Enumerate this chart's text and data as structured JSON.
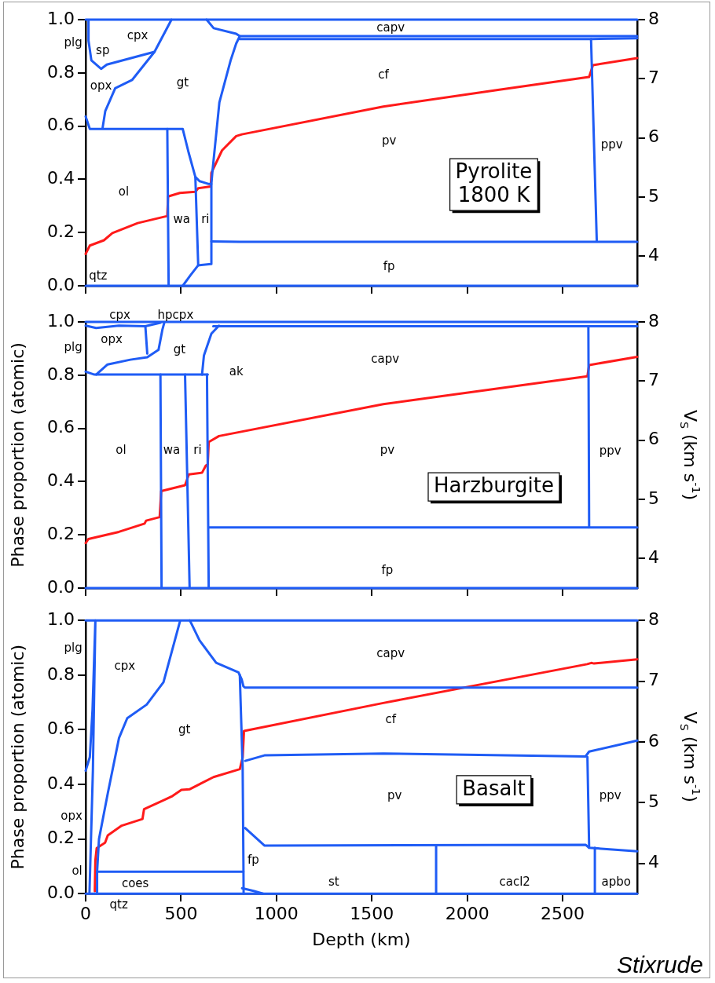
{
  "chart_data": [
    {
      "type": "line",
      "title": "Pyrolite\n1800 K",
      "xlim": [
        0,
        2891
      ],
      "xticks": [
        0,
        500,
        1000,
        1500,
        2000,
        2500
      ],
      "ylim": [
        0,
        1
      ],
      "yticks": [
        {
          "value": 0,
          "label": "0.0"
        },
        {
          "value": 0.2,
          "label": "0.2"
        },
        {
          "value": 0.4,
          "label": "0.4"
        },
        {
          "value": 0.6,
          "label": "0.6"
        },
        {
          "value": 0.8,
          "label": "0.8"
        },
        {
          "value": 1,
          "label": "1.0"
        }
      ],
      "y2lim": [
        3.5,
        8
      ],
      "y2ticks": [
        4,
        5,
        6,
        7,
        8
      ],
      "tick_labels": "y",
      "series": [
        {
          "color": "#1f5cf5",
          "x": [
            0,
            2891
          ],
          "values": [
            1,
            1
          ]
        },
        {
          "color": "#1f5cf5",
          "x": [
            0,
            2891
          ],
          "values": [
            0,
            0
          ]
        },
        {
          "color": "#1f5cf5",
          "x": [
            634,
            671,
            789,
            808,
            2891
          ],
          "values": [
            1.0,
            0.968,
            0.947,
            0.938,
            0.938
          ]
        },
        {
          "color": "#1f5cf5",
          "x": [
            808,
            2649,
            2891
          ],
          "values": [
            0.927,
            0.927,
            0.93
          ]
        },
        {
          "color": "#1f5cf5",
          "x": [
            2649,
            2679
          ],
          "values": [
            0.927,
            0.168
          ]
        },
        {
          "color": "#1f5cf5",
          "x": [
            659,
            808,
            2891
          ],
          "values": [
            0.167,
            0.165,
            0.165
          ]
        },
        {
          "color": "#1f5cf5",
          "x": [
            509,
            550,
            590,
            656,
            659,
            659,
            664,
            701,
            760,
            789,
            808
          ],
          "values": [
            0,
            0.04,
            0.077,
            0.082,
            0.082,
            0.383,
            0.425,
            0.689,
            0.847,
            0.91,
            0.938
          ]
        },
        {
          "color": "#1f5cf5",
          "x": [
            0,
            15,
            22,
            428,
            509,
            540,
            575,
            597,
            642,
            659
          ],
          "values": [
            0.636,
            0.604,
            0.589,
            0.589,
            0.589,
            0.5,
            0.409,
            0.393,
            0.383,
            0.383
          ]
        },
        {
          "color": "#1f5cf5",
          "x": [
            428,
            435
          ],
          "values": [
            0.589,
            0
          ]
        },
        {
          "color": "#1f5cf5",
          "x": [
            575,
            590
          ],
          "values": [
            0.409,
            0.077
          ]
        },
        {
          "color": "#1f5cf5",
          "x": [
            15,
            15,
            30,
            81,
            111,
            361,
            450
          ],
          "values": [
            0.995,
            0.921,
            0.847,
            0.815,
            0.831,
            0.879,
            1.0
          ]
        },
        {
          "color": "#1f5cf5",
          "x": [
            89,
            103,
            155,
            243,
            361
          ],
          "values": [
            0.594,
            0.657,
            0.742,
            0.773,
            0.879
          ]
        },
        {
          "color": "#ff1a1a",
          "axis": "y2",
          "x": [
            0,
            22,
            96,
            140,
            273,
            428,
            432,
            494,
            575,
            590,
            656,
            659,
            715,
            789,
            819,
            1560,
            2154,
            2639,
            2659,
            2891
          ],
          "values": [
            4.04,
            4.18,
            4.27,
            4.39,
            4.56,
            4.68,
            5.01,
            5.07,
            5.09,
            5.15,
            5.18,
            5.41,
            5.79,
            6.03,
            6.06,
            6.53,
            6.81,
            7.03,
            7.23,
            7.35
          ]
        }
      ],
      "annotations": [
        "plg",
        "sp",
        "cpx",
        "opx",
        "gt",
        "ol",
        "wa",
        "ri",
        "qtz",
        "capv",
        "cf",
        "pv",
        "ppv",
        "fp"
      ]
    },
    {
      "type": "line",
      "title": "Harzburgite",
      "ylabel": "Phase proportion (atomic)",
      "y2label": "V$_{S}$ (km s$^{-1}$)",
      "xlim": [
        0,
        2891
      ],
      "xticks": [
        0,
        500,
        1000,
        1500,
        2000,
        2500
      ],
      "ylim": [
        0,
        1
      ],
      "yticks": [
        {
          "value": 0,
          "label": "0.0"
        },
        {
          "value": 0.2,
          "label": "0.2"
        },
        {
          "value": 0.4,
          "label": "0.4"
        },
        {
          "value": 0.6,
          "label": "0.6"
        },
        {
          "value": 0.8,
          "label": "0.8"
        },
        {
          "value": 1,
          "label": "1.0"
        }
      ],
      "y2lim": [
        3.5,
        8
      ],
      "y2ticks": [
        4,
        5,
        6,
        7,
        8
      ],
      "tick_labels": "y",
      "series": [
        {
          "color": "#1f5cf5",
          "x": [
            0,
            2891
          ],
          "values": [
            1,
            1
          ]
        },
        {
          "color": "#1f5cf5",
          "x": [
            0,
            2891
          ],
          "values": [
            0,
            0
          ]
        },
        {
          "color": "#1f5cf5",
          "x": [
            669,
            2891
          ],
          "values": [
            0.984,
            0.984
          ]
        },
        {
          "color": "#1f5cf5",
          "x": [
            0,
            55,
            174,
            313,
            392
          ],
          "values": [
            0.986,
            0.977,
            0.986,
            0.984,
            0.997
          ]
        },
        {
          "color": "#1f5cf5",
          "x": [
            0,
            46,
            640
          ],
          "values": [
            0.813,
            0.802,
            0.802
          ]
        },
        {
          "color": "#1f5cf5",
          "x": [
            55,
            115,
            234,
            323,
            382,
            402,
            412
          ],
          "values": [
            0.802,
            0.84,
            0.858,
            0.867,
            0.895,
            0.97,
            0.997
          ]
        },
        {
          "color": "#1f5cf5",
          "x": [
            313,
            323
          ],
          "values": [
            0.984,
            0.881
          ]
        },
        {
          "color": "#1f5cf5",
          "x": [
            610,
            620,
            659,
            699
          ],
          "values": [
            0.802,
            0.874,
            0.956,
            0.986
          ]
        },
        {
          "color": "#1f5cf5",
          "x": [
            392,
            398
          ],
          "values": [
            0.802,
            0
          ]
        },
        {
          "color": "#1f5cf5",
          "x": [
            521,
            545
          ],
          "values": [
            0.802,
            0
          ]
        },
        {
          "color": "#1f5cf5",
          "x": [
            636,
            645
          ],
          "values": [
            0.802,
            0
          ]
        },
        {
          "color": "#1f5cf5",
          "x": [
            645,
            2891
          ],
          "values": [
            0.228,
            0.228
          ]
        },
        {
          "color": "#1f5cf5",
          "x": [
            2635,
            2639
          ],
          "values": [
            0.984,
            0.228
          ]
        },
        {
          "color": "#ff1a1a",
          "axis": "y2",
          "x": [
            0,
            15,
            174,
            309,
            317,
            388,
            396,
            521,
            541,
            610,
            630,
            640,
            645,
            699,
            1560,
            2630,
            2639,
            2891
          ],
          "values": [
            4.26,
            4.33,
            4.45,
            4.59,
            4.64,
            4.7,
            5.14,
            5.24,
            5.42,
            5.45,
            5.57,
            5.59,
            5.97,
            6.07,
            6.61,
            7.08,
            7.27,
            7.41
          ]
        }
      ],
      "annotations": [
        "cpx",
        "hpcpx",
        "plg",
        "opx",
        "gt",
        "ak",
        "capv",
        "ol",
        "wa",
        "ri",
        "pv",
        "ppv",
        "fp"
      ]
    },
    {
      "type": "line",
      "title": "Basalt",
      "xlabel": "Depth (km)",
      "ylabel": "Phase proportion (atomic)",
      "y2label": "V$_{S}$ (km s$^{-1}$)",
      "xlim": [
        0,
        2891
      ],
      "xticks": [
        0,
        500,
        1000,
        1500,
        2000,
        2500
      ],
      "ylim": [
        0,
        1
      ],
      "yticks": [
        {
          "value": 0,
          "label": "0.0"
        },
        {
          "value": 0.2,
          "label": "0.2"
        },
        {
          "value": 0.4,
          "label": "0.4"
        },
        {
          "value": 0.6,
          "label": "0.6"
        },
        {
          "value": 0.8,
          "label": "0.8"
        },
        {
          "value": 1,
          "label": "1.0"
        }
      ],
      "y2lim": [
        3.5,
        8
      ],
      "y2ticks": [
        4,
        5,
        6,
        7,
        8
      ],
      "series": [
        {
          "color": "#1f5cf5",
          "x": [
            0,
            2891
          ],
          "values": [
            1,
            1
          ]
        },
        {
          "color": "#1f5cf5",
          "x": [
            0,
            2891
          ],
          "values": [
            0,
            0
          ]
        },
        {
          "color": "#1f5cf5",
          "x": [
            20,
            38,
            51,
            36,
            22,
            0
          ],
          "values": [
            0.0,
            0.45,
            1.0,
            0.672,
            0.5,
            0.45
          ]
        },
        {
          "color": "#1f5cf5",
          "x": [
            60,
            70,
            116,
            175,
            218,
            320,
            408,
            495
          ],
          "values": [
            0.08,
            0.2,
            0.367,
            0.57,
            0.642,
            0.692,
            0.774,
            0.998
          ]
        },
        {
          "color": "#1f5cf5",
          "x": [
            546,
            597,
            684,
            801,
            818,
            827,
            836,
            2891
          ],
          "values": [
            1.0,
            0.927,
            0.845,
            0.81,
            0.784,
            0.759,
            0.754,
            0.754
          ]
        },
        {
          "color": "#1f5cf5",
          "x": [
            808,
            823,
            827,
            828
          ],
          "values": [
            0.8,
            0.458,
            0.112,
            0.0
          ]
        },
        {
          "color": "#1f5cf5",
          "x": [
            836,
            937,
            1560,
            2620,
            2639,
            2891
          ],
          "values": [
            0.486,
            0.506,
            0.513,
            0.502,
            0.52,
            0.56
          ]
        },
        {
          "color": "#1f5cf5",
          "x": [
            836,
            937,
            2620,
            2639,
            2891
          ],
          "values": [
            0.24,
            0.176,
            0.179,
            0.168,
            0.155
          ]
        },
        {
          "color": "#1f5cf5",
          "x": [
            2630,
            2639
          ],
          "values": [
            0.5,
            0.168
          ]
        },
        {
          "color": "#1f5cf5",
          "x": [
            2669,
            2669
          ],
          "values": [
            0.168,
            0
          ]
        },
        {
          "color": "#1f5cf5",
          "x": [
            1837,
            1837
          ],
          "values": [
            0.177,
            0
          ]
        },
        {
          "color": "#1f5cf5",
          "x": [
            60,
            60,
            827
          ],
          "values": [
            0.0,
            0.08,
            0.08
          ]
        },
        {
          "color": "#1f5cf5",
          "x": [
            820,
            880,
            930
          ],
          "values": [
            0.02,
            0.01,
            0.0
          ]
        },
        {
          "color": "#ff1a1a",
          "axis": "y2",
          "x": [
            48,
            51,
            58,
            102,
            116,
            189,
            298,
            306,
            451,
            502,
            546,
            670,
            808,
            823,
            830,
            1560,
            2629,
            2650,
            2665,
            2891
          ],
          "values": [
            3.54,
            4.05,
            4.25,
            4.34,
            4.46,
            4.62,
            4.73,
            4.89,
            5.1,
            5.21,
            5.22,
            5.42,
            5.55,
            5.74,
            6.18,
            6.64,
            7.28,
            7.3,
            7.29,
            7.36
          ]
        }
      ],
      "annotations": [
        "plg",
        "cpx",
        "gt",
        "opx",
        "ol",
        "coes",
        "qtz",
        "capv",
        "cf",
        "pv",
        "ppv",
        "fp",
        "st",
        "cacl2",
        "apbo",
        "Stixrude"
      ]
    }
  ]
}
